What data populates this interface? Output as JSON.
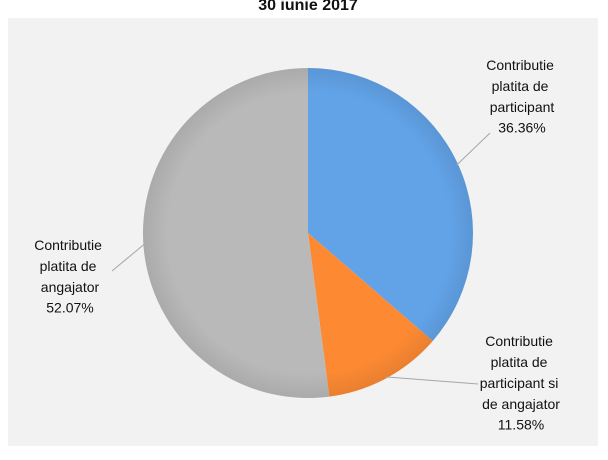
{
  "chart_data": {
    "type": "pie",
    "title": "30 iunie 2017",
    "categories": [
      "Contributie platita de participant",
      "Contributie platita de participant si de angajator",
      "Contributie platita de angajator"
    ],
    "values": [
      36.36,
      11.58,
      52.07
    ],
    "value_labels": [
      "36.36%",
      "11.58%",
      "52.07%"
    ],
    "colors": [
      "#62a3e8",
      "#fd8a33",
      "#b9b9b9"
    ]
  }
}
